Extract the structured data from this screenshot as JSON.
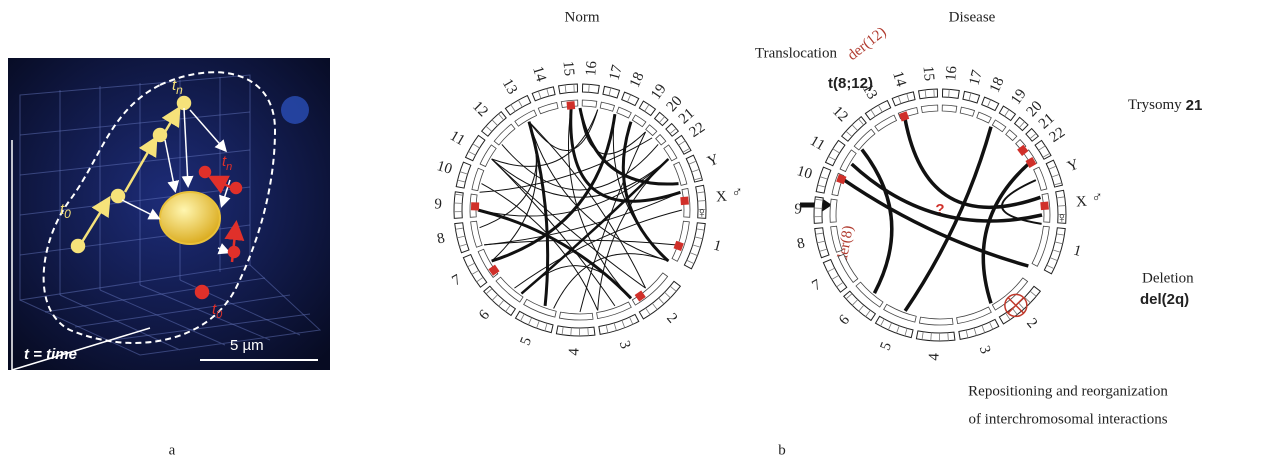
{
  "panel_a": {
    "label": "a",
    "time_note": "t = time",
    "scale_bar": "5 µm",
    "yellow_start": {
      "t": "t",
      "sub": "0"
    },
    "yellow_end": {
      "t": "t",
      "sub": "n"
    },
    "red_start": {
      "t": "t",
      "sub": "0"
    },
    "red_end": {
      "t": "t",
      "sub": "n"
    }
  },
  "panel_b": {
    "label": "b",
    "chromosomes": [
      "1",
      "2",
      "3",
      "4",
      "5",
      "6",
      "7",
      "8",
      "9",
      "10",
      "11",
      "12",
      "13",
      "14",
      "15",
      "16",
      "17",
      "18",
      "19",
      "20",
      "21",
      "22",
      "Y",
      "X"
    ],
    "sex_symbols": [
      "♀",
      "♂"
    ],
    "norm": {
      "title": "Norm"
    },
    "disease": {
      "title": "Disease",
      "question": "?",
      "translocation": {
        "label": "Translocation",
        "code": "t(8;12)"
      },
      "trisomy": {
        "label": "Trysomy",
        "number": "21"
      },
      "deletion": {
        "label": "Deletion",
        "code": "del(2q)"
      },
      "derivatives": [
        "der(12)",
        "der(8)"
      ],
      "caption": [
        "Repositioning and reorganization",
        "of interchromosomal interactions"
      ]
    }
  }
}
